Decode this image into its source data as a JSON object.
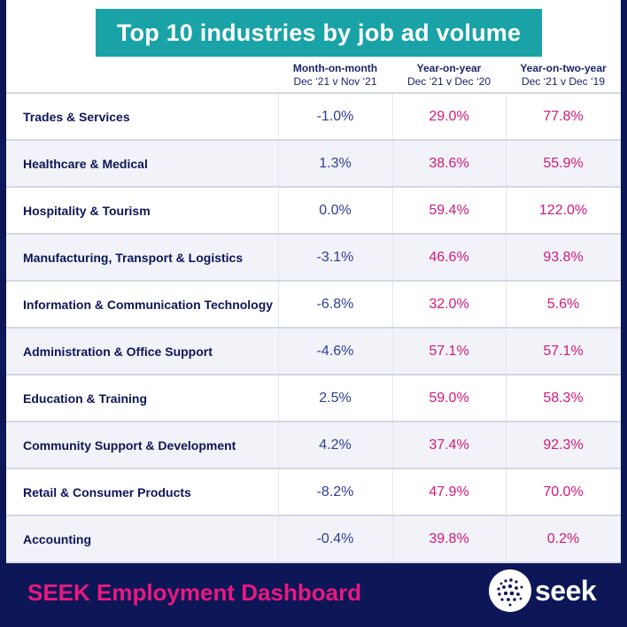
{
  "title": "Top 10 industries by job ad volume",
  "columns": [
    {
      "heading": "Month-on-month",
      "subheading": "Dec ‘21 v Nov ‘21"
    },
    {
      "heading": "Year-on-year",
      "subheading": "Dec ‘21 v Dec ‘20"
    },
    {
      "heading": "Year-on-two-year",
      "subheading": "Dec ‘21 v Dec ‘19"
    }
  ],
  "chart_data": {
    "type": "table",
    "title": "Top 10 industries by job ad volume",
    "columns": [
      "Month-on-month",
      "Year-on-year",
      "Year-on-two-year"
    ],
    "rows": [
      {
        "industry": "Trades & Services",
        "mom": "-1.0%",
        "yoy": "29.0%",
        "yo2y": "77.8%"
      },
      {
        "industry": "Healthcare & Medical",
        "mom": "1.3%",
        "yoy": "38.6%",
        "yo2y": "55.9%"
      },
      {
        "industry": "Hospitality & Tourism",
        "mom": "0.0%",
        "yoy": "59.4%",
        "yo2y": "122.0%"
      },
      {
        "industry": "Manufacturing, Transport & Logistics",
        "mom": "-3.1%",
        "yoy": "46.6%",
        "yo2y": "93.8%"
      },
      {
        "industry": "Information & Communication Technology",
        "mom": "-6.8%",
        "yoy": "32.0%",
        "yo2y": "5.6%"
      },
      {
        "industry": "Administration & Office Support",
        "mom": "-4.6%",
        "yoy": "57.1%",
        "yo2y": "57.1%"
      },
      {
        "industry": "Education & Training",
        "mom": "2.5%",
        "yoy": "59.0%",
        "yo2y": "58.3%"
      },
      {
        "industry": "Community Support & Development",
        "mom": "4.2%",
        "yoy": "37.4%",
        "yo2y": "92.3%"
      },
      {
        "industry": "Retail & Consumer Products",
        "mom": "-8.2%",
        "yoy": "47.9%",
        "yo2y": "70.0%"
      },
      {
        "industry": "Accounting",
        "mom": "-0.4%",
        "yoy": "39.8%",
        "yo2y": "0.2%"
      }
    ]
  },
  "footer": {
    "label": "SEEK Employment Dashboard"
  },
  "logo": {
    "text": "seek"
  },
  "colors": {
    "background": "#0d1657",
    "title_bar": "#1aa3a6",
    "mom_value": "#2e3f96",
    "yoy_value": "#d6187a",
    "footer_text": "#e8197f"
  }
}
